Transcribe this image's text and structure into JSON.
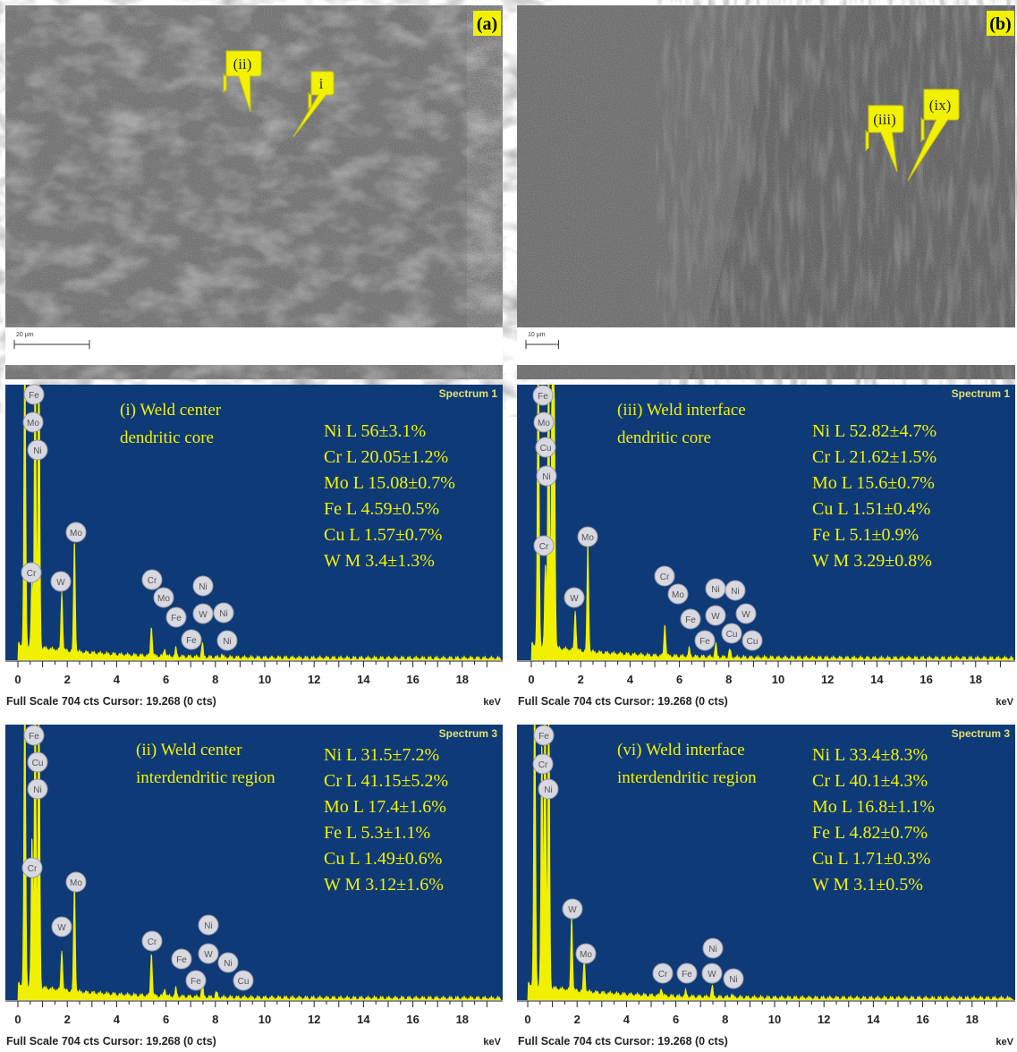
{
  "images": [
    {
      "label": "(a)",
      "markers": [
        "(ii)",
        "i"
      ],
      "scale_bar": "20 µm"
    },
    {
      "label": "(b)",
      "markers": [
        "(iii)",
        "(ix)"
      ],
      "scale_bar": "10 µm"
    }
  ],
  "axis": {
    "ticks": [
      "0",
      "2",
      "4",
      "6",
      "8",
      "10",
      "12",
      "14",
      "16",
      "18"
    ],
    "unit": "keV",
    "footer": "Full Scale 704 cts Cursor: 19.268  (0 cts)"
  },
  "spectra": [
    {
      "spectrum": "Spectrum 1",
      "caption": [
        "(i) Weld center",
        "dendritic core"
      ],
      "composition": [
        "Ni L 56±3.1%",
        "Cr L 20.05±1.2%",
        "Mo L 15.08±0.7%",
        "Fe L 4.59±0.5%",
        "Cu L 1.57±0.7%",
        "W M 3.4±1.3%"
      ],
      "peaks": [
        "Fe",
        "Mo",
        "Ni",
        "Cr",
        "W",
        "Mo",
        "Cr",
        "Mo",
        "Fe",
        "Ni",
        "W",
        "Ni",
        "Fe",
        "Ni"
      ]
    },
    {
      "spectrum": "Spectrum 1",
      "caption": [
        "(iii) Weld interface",
        "dendritic core"
      ],
      "composition": [
        "Ni L 52.82±4.7%",
        "Cr L 21.62±1.5%",
        "Mo L 15.6±0.7%",
        "Cu L 1.51±0.4%",
        "Fe L 5.1±0.9%",
        "W M 3.29±0.8%"
      ],
      "peaks": [
        "Fe",
        "Mo",
        "Cu",
        "Ni",
        "Cr",
        "W",
        "Mo",
        "Cr",
        "Mo",
        "Fe",
        "Ni",
        "W",
        "Ni",
        "W",
        "Cu",
        "Fe",
        "Cu"
      ]
    },
    {
      "spectrum": "Spectrum 3",
      "caption": [
        "(ii) Weld center",
        "interdendritic region"
      ],
      "composition": [
        "Ni L 31.5±7.2%",
        "Cr L 41.15±5.2%",
        "Mo L 17.4±1.6%",
        "Fe L 5.3±1.1%",
        "Cu L 1.49±0.6%",
        "W M 3.12±1.6%"
      ],
      "peaks": [
        "Fe",
        "Cu",
        "Ni",
        "Cr",
        "W",
        "Mo",
        "Cr",
        "Fe",
        "Ni",
        "W",
        "Ni",
        "Fe",
        "Cu"
      ]
    },
    {
      "spectrum": "Spectrum 3",
      "caption": [
        "(vi) Weld interface",
        "interdendritic region"
      ],
      "composition": [
        "Ni L 33.4±8.3%",
        "Cr L 40.1±4.3%",
        "Mo L 16.8±1.1%",
        "Fe L 4.82±0.7%",
        "Cu L 1.71±0.3%",
        "W M 3.1±0.5%"
      ],
      "peaks": [
        "Fe",
        "Cr",
        "Ni",
        "W",
        "Mo",
        "Cr",
        "Fe",
        "Ni",
        "W",
        "Ni"
      ]
    }
  ]
}
